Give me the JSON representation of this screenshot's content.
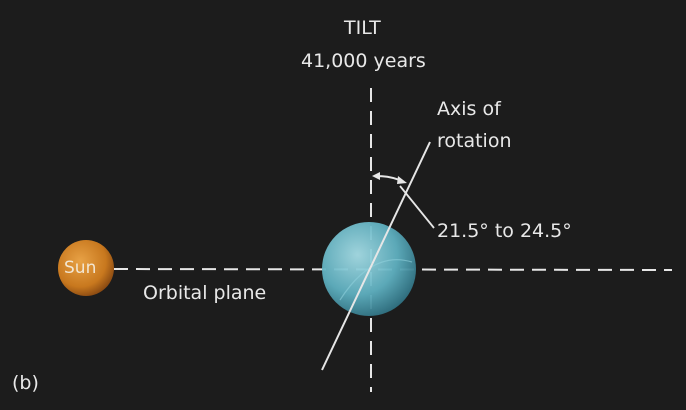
{
  "labels": {
    "tilt_title": "TILT",
    "tilt_period": "41,000 years",
    "axis_line1": "Axis of",
    "axis_line2": "rotation",
    "angle_range": "21.5° to 24.5°",
    "sun": "Sun",
    "orbital_plane": "Orbital plane",
    "panel": "(b)"
  },
  "colors": {
    "background": "#1c1c1c",
    "line": "#e6e6e6",
    "sun": "#c8781e",
    "earth": "#6ab8c8"
  }
}
